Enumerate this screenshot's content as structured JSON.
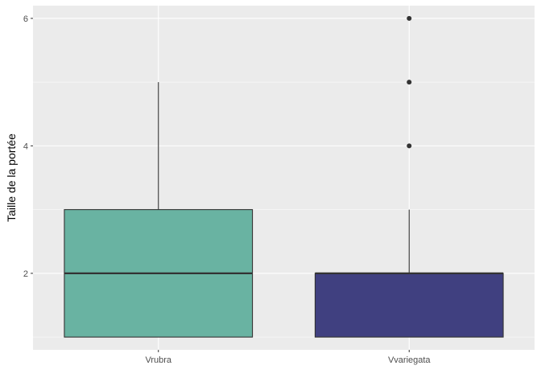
{
  "chart_data": {
    "type": "boxplot",
    "title": "",
    "xlabel": "",
    "ylabel": "Taille de la portée",
    "ylim": [
      0.8,
      6.2
    ],
    "y_ticks": [
      2,
      4,
      6
    ],
    "y_minor_ticks": [
      1,
      3,
      5
    ],
    "grid": true,
    "legend": "none",
    "categories": [
      "Vrubra",
      "Vvariegata"
    ],
    "boxes": [
      {
        "category": "Vrubra",
        "min": 1,
        "q1": 1,
        "median": 2,
        "q3": 3,
        "max": 5,
        "outliers": [],
        "color": "#69b3a2"
      },
      {
        "category": "Vvariegata",
        "min": 1,
        "q1": 1,
        "median": 2,
        "q3": 2,
        "max": 3,
        "outliers": [
          4,
          5,
          6
        ],
        "color": "#404080"
      }
    ],
    "colors": {
      "panel": "#ebebeb",
      "grid": "#ffffff",
      "line": "#333333"
    }
  }
}
